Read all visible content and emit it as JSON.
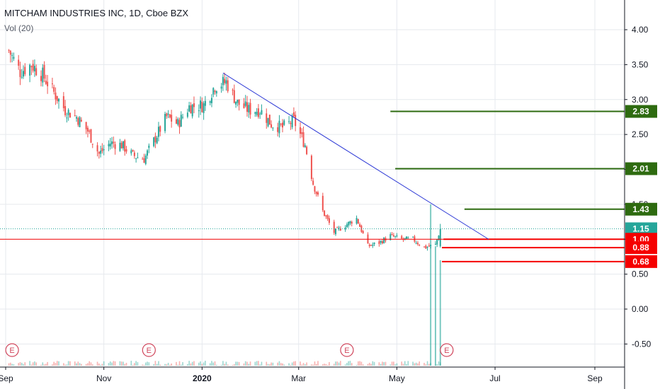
{
  "header": {
    "title": "MITCHAM INDUSTRIES INC, 1D, Cboe BZX",
    "indicator": "Vol (20)"
  },
  "chart_data": {
    "type": "candlestick",
    "symbol": "MITCHAM INDUSTRIES INC",
    "interval": "1D",
    "exchange": "Cboe BZX",
    "price_axis": {
      "ticks": [
        "4.00",
        "3.50",
        "3.00",
        "2.50",
        "2.00",
        "1.50",
        "1.00",
        "0.50",
        "0.00",
        "-0.50"
      ],
      "range": [
        -0.78,
        4.42
      ]
    },
    "time_axis": {
      "labels": [
        "Sep",
        "Nov",
        "2020",
        "Mar",
        "May",
        "Jul",
        "Sep"
      ]
    },
    "price_path": [
      {
        "date": "2019-09-03",
        "close": 3.7
      },
      {
        "date": "2019-09-10",
        "close": 3.4
      },
      {
        "date": "2019-09-17",
        "close": 3.5
      },
      {
        "date": "2019-09-24",
        "close": 3.35
      },
      {
        "date": "2019-10-01",
        "close": 3.1
      },
      {
        "date": "2019-10-08",
        "close": 2.85
      },
      {
        "date": "2019-10-15",
        "close": 2.75
      },
      {
        "date": "2019-10-22",
        "close": 2.55
      },
      {
        "date": "2019-10-29",
        "close": 2.22
      },
      {
        "date": "2019-11-05",
        "close": 2.38
      },
      {
        "date": "2019-11-12",
        "close": 2.35
      },
      {
        "date": "2019-11-19",
        "close": 2.2
      },
      {
        "date": "2019-11-26",
        "close": 2.15
      },
      {
        "date": "2019-12-03",
        "close": 2.45
      },
      {
        "date": "2019-12-10",
        "close": 2.75
      },
      {
        "date": "2019-12-17",
        "close": 2.65
      },
      {
        "date": "2019-12-24",
        "close": 2.9
      },
      {
        "date": "2020-01-02",
        "close": 2.92
      },
      {
        "date": "2020-01-09",
        "close": 3.2
      },
      {
        "date": "2020-01-16",
        "close": 3.25
      },
      {
        "date": "2020-01-23",
        "close": 2.95
      },
      {
        "date": "2020-01-30",
        "close": 2.85
      },
      {
        "date": "2020-02-06",
        "close": 2.85
      },
      {
        "date": "2020-02-13",
        "close": 2.65
      },
      {
        "date": "2020-02-20",
        "close": 2.6
      },
      {
        "date": "2020-02-27",
        "close": 2.7
      },
      {
        "date": "2020-03-05",
        "close": 2.35
      },
      {
        "date": "2020-03-10",
        "close": 1.8
      },
      {
        "date": "2020-03-16",
        "close": 1.4
      },
      {
        "date": "2020-03-23",
        "close": 1.1
      },
      {
        "date": "2020-03-30",
        "close": 1.2
      },
      {
        "date": "2020-04-06",
        "close": 1.3
      },
      {
        "date": "2020-04-13",
        "close": 0.9
      },
      {
        "date": "2020-04-20",
        "close": 0.95
      },
      {
        "date": "2020-04-27",
        "close": 1.05
      },
      {
        "date": "2020-05-04",
        "close": 1.0
      },
      {
        "date": "2020-05-11",
        "close": 1.0
      },
      {
        "date": "2020-05-18",
        "close": 0.88
      },
      {
        "date": "2020-05-25",
        "close": 0.92
      },
      {
        "date": "2020-05-28",
        "close": 1.15
      }
    ],
    "volume_spikes": [
      {
        "date": "2020-05-22",
        "value": 1.5
      },
      {
        "date": "2020-05-25",
        "value": 0.9
      },
      {
        "date": "2020-05-28",
        "value": 0.7
      }
    ],
    "last_price": 1.15,
    "earnings_markers": [
      "2019-09-05",
      "2019-11-29",
      "2020-03-31",
      "2020-06-01"
    ],
    "annotations": {
      "trendline": {
        "from": {
          "date": "2020-01-14",
          "price": 3.38
        },
        "to": {
          "date": "2020-06-27",
          "price": 1.0
        },
        "color": "#2f3bd6"
      },
      "resistance_levels": [
        {
          "value": 2.83,
          "label": "2.83",
          "color": "#2e6b10"
        },
        {
          "value": 2.01,
          "label": "2.01",
          "color": "#2e6b10"
        },
        {
          "value": 1.43,
          "label": "1.43",
          "color": "#2e6b10"
        }
      ],
      "support_levels": [
        {
          "value": 1.0,
          "label": "1.00",
          "color": "#f50000"
        },
        {
          "value": 0.88,
          "label": "0.88",
          "color": "#f50000"
        },
        {
          "value": 0.68,
          "label": "0.68",
          "color": "#f50000"
        }
      ],
      "last_price_tag": {
        "value": 1.15,
        "label": "1.15",
        "color": "#26a69a"
      }
    },
    "colors": {
      "up": "#26a69a",
      "down": "#ef5350",
      "grid": "#e6e9ee"
    },
    "grid": true
  }
}
